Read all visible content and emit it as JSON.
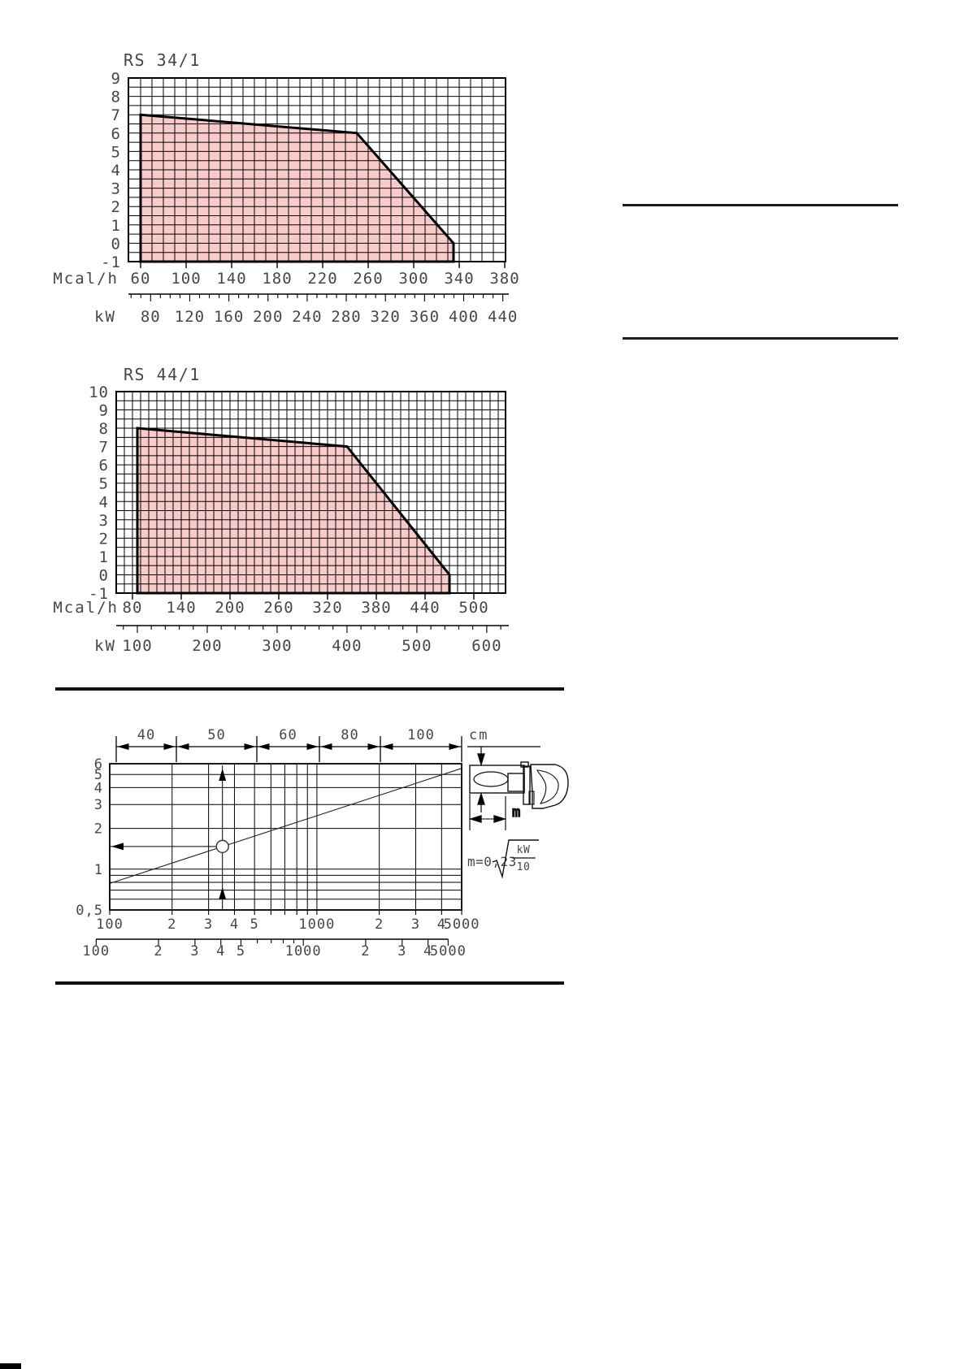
{
  "page": {
    "background": "#ffffff"
  },
  "chart_data": [
    {
      "id": "rs34-1",
      "type": "area",
      "title": "RS 34/1",
      "x_axis": {
        "label": "Mcal/h",
        "ticks": [
          60,
          100,
          140,
          180,
          220,
          260,
          300,
          340,
          380
        ],
        "minor_step": 10,
        "range": [
          50,
          381
        ]
      },
      "x_axis_secondary": {
        "label": "kW",
        "ticks": [
          80,
          120,
          160,
          200,
          240,
          280,
          320,
          360,
          400,
          440
        ],
        "minor_step": 10,
        "unit_factor": 1.163,
        "minor_range": [
          60,
          450
        ]
      },
      "y_axis": {
        "ticks": [
          9,
          8,
          7,
          6,
          5,
          4,
          3,
          2,
          1,
          0,
          -1
        ],
        "minor_step": 0.5,
        "range": [
          -1,
          9
        ]
      },
      "region": {
        "name": "firing-range",
        "fill": "#f9caca",
        "points_mcal_vs_pressure": [
          [
            60,
            -1
          ],
          [
            60,
            7
          ],
          [
            250,
            6
          ],
          [
            335,
            0
          ],
          [
            335,
            -1
          ]
        ]
      }
    },
    {
      "id": "rs44-1",
      "type": "area",
      "title": "RS 44/1",
      "x_axis": {
        "label": "Mcal/h",
        "ticks": [
          80,
          140,
          200,
          260,
          320,
          380,
          440,
          500
        ],
        "minor_step": 10,
        "range": [
          60,
          539
        ]
      },
      "x_axis_secondary": {
        "label": "kW",
        "ticks": [
          100,
          200,
          300,
          400,
          500,
          600
        ],
        "minor_step": 20,
        "unit_factor": 1.163,
        "minor_range": [
          80,
          620
        ]
      },
      "y_axis": {
        "ticks": [
          10,
          9,
          8,
          7,
          6,
          5,
          4,
          3,
          2,
          1,
          0,
          -1
        ],
        "minor_step": 0.5,
        "range": [
          -1,
          10
        ]
      },
      "region": {
        "name": "firing-range",
        "fill": "#f9caca",
        "points_mcal_vs_pressure": [
          [
            86,
            -1
          ],
          [
            86,
            8
          ],
          [
            344,
            7
          ],
          [
            470,
            0
          ],
          [
            470,
            -1
          ]
        ]
      }
    },
    {
      "id": "flame-dimensions",
      "type": "line",
      "x_scale": "log",
      "y_scale": "log",
      "x_range": [
        100,
        5000
      ],
      "y_range": [
        0.5,
        6
      ],
      "y_ticks": [
        6,
        5,
        4,
        3,
        2,
        1,
        0.5
      ],
      "y_tick_labels": [
        "6",
        "5",
        "4",
        "3",
        "2",
        "1",
        "0,5"
      ],
      "y_minor": [
        0.9,
        0.8,
        0.7,
        0.6
      ],
      "x_ticks": [
        100,
        200,
        300,
        400,
        500,
        600,
        700,
        800,
        900,
        1000,
        2000,
        3000,
        4000,
        5000
      ],
      "x_labels_primary": {
        "values": [
          100,
          200,
          300,
          400,
          500,
          1000,
          2000,
          3000,
          4000,
          5000
        ],
        "labels": [
          "100",
          "2",
          "3",
          "4",
          "5",
          "1000",
          "2",
          "3",
          "4",
          "5000"
        ]
      },
      "x_labels_secondary": {
        "values": [
          100,
          200,
          300,
          400,
          500,
          1000,
          2000,
          3000,
          4000,
          5000
        ],
        "labels": [
          "100",
          "2",
          "3",
          "4",
          "5",
          "1000",
          "2",
          "3",
          "4",
          "5000"
        ],
        "unit_factor": 1.163
      },
      "top_scale": {
        "segment_labels": [
          "40",
          "50",
          "60",
          "80",
          "100"
        ],
        "unit": "cm"
      },
      "flame_length_line": {
        "coefficient": 0.23,
        "unit_factor": 1.163
      },
      "example_point": {
        "x": 350,
        "m": 1.47
      },
      "formula": {
        "lhs": "m=0,23",
        "radicand_numerator": "kW",
        "radicand_denominator": "10"
      },
      "diagram_labels": {
        "diameter_unit": "cm",
        "length_symbol": "m"
      }
    }
  ]
}
